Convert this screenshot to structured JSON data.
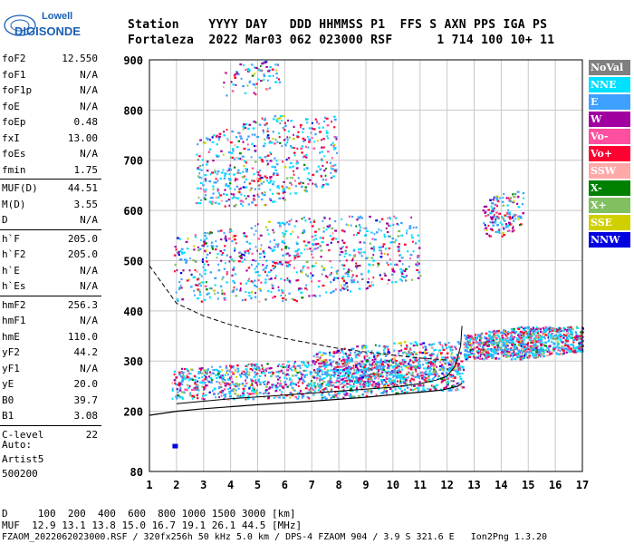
{
  "logo": {
    "line1": "Lowell",
    "line2": "DIGISONDE",
    "color": "#1a5fb4"
  },
  "header": {
    "row1": "Station    YYYY DAY   DDD HHMMSS P1  FFS S AXN PPS IGA PS",
    "row2": "Fortaleza  2022 Mar03 062 023000 RSF      1 714 100 10+ 11"
  },
  "params_groups": [
    [
      {
        "name": "foF2",
        "value": "12.550"
      },
      {
        "name": "foF1",
        "value": "N/A"
      },
      {
        "name": "foF1p",
        "value": "N/A"
      },
      {
        "name": "foE",
        "value": "N/A"
      },
      {
        "name": "foEp",
        "value": "0.48"
      },
      {
        "name": "fxI",
        "value": "13.00"
      },
      {
        "name": "foEs",
        "value": "N/A"
      },
      {
        "name": "fmin",
        "value": "1.75"
      }
    ],
    [
      {
        "name": "MUF(D)",
        "value": "44.51"
      },
      {
        "name": "M(D)",
        "value": "3.55"
      },
      {
        "name": "D",
        "value": "N/A"
      }
    ],
    [
      {
        "name": "h`F",
        "value": "205.0"
      },
      {
        "name": "h`F2",
        "value": "205.0"
      },
      {
        "name": "h`E",
        "value": "N/A"
      },
      {
        "name": "h`Es",
        "value": "N/A"
      }
    ],
    [
      {
        "name": "hmF2",
        "value": "256.3"
      },
      {
        "name": "hmF1",
        "value": "N/A"
      },
      {
        "name": "hmE",
        "value": "110.0"
      },
      {
        "name": "yF2",
        "value": "44.2"
      },
      {
        "name": "yF1",
        "value": "N/A"
      },
      {
        "name": "yE",
        "value": "20.0"
      },
      {
        "name": "B0",
        "value": "39.7"
      },
      {
        "name": "B1",
        "value": "3.08"
      }
    ],
    [
      {
        "name": "C-level",
        "value": "22"
      }
    ]
  ],
  "autoscale": {
    "line1": "Auto:",
    "line2": "Artist5",
    "line3": "500200"
  },
  "legend": [
    {
      "label": "NoVal",
      "color": "#808080"
    },
    {
      "label": "NNE",
      "color": "#00e0ff"
    },
    {
      "label": "E",
      "color": "#3ea0ff"
    },
    {
      "label": "W",
      "color": "#a000a0"
    },
    {
      "label": "Vo-",
      "color": "#ff4fa0"
    },
    {
      "label": "Vo+",
      "color": "#ff0030"
    },
    {
      "label": "SSW",
      "color": "#ffa8a8"
    },
    {
      "label": "X-",
      "color": "#008000"
    },
    {
      "label": "X+",
      "color": "#80c060"
    },
    {
      "label": "SSE",
      "color": "#d0d000"
    },
    {
      "label": "NNW",
      "color": "#0000e0"
    }
  ],
  "footer": {
    "line1": "D     100  200  400  600  800 1000 1500 3000 [km]",
    "line2": "MUF  12.9 13.1 13.8 15.0 16.7 19.1 26.1 44.5 [MHz]",
    "line3": "FZAOM_2022062023000.RSF / 320fx256h 50 kHz 5.0 km / DPS-4 FZAOM 904 / 3.9 S 321.6 E   Ion2Png 1.3.20"
  },
  "chart_data": {
    "type": "scatter",
    "xlim": [
      1,
      17
    ],
    "ylim": [
      80,
      900
    ],
    "x_ticks": [
      "1",
      "2",
      "3",
      "4",
      "5",
      "6",
      "7",
      "8",
      "9",
      "10",
      "11",
      "12",
      "13",
      "14",
      "15",
      "16",
      "17"
    ],
    "y_ticks": [
      "80",
      "200",
      "300",
      "400",
      "500",
      "600",
      "700",
      "800",
      "900"
    ],
    "y_tick_values": [
      80,
      200,
      300,
      400,
      500,
      600,
      700,
      800,
      900
    ],
    "grid": true,
    "trace_clusters": [
      {
        "x0": 1.8,
        "x1": 12.6,
        "y0": 225,
        "y1": 305,
        "density": 1400
      },
      {
        "x0": 7.0,
        "x1": 12.5,
        "y0": 250,
        "y1": 340,
        "density": 700
      },
      {
        "x0": 12.6,
        "x1": 17.0,
        "y0": 305,
        "y1": 370,
        "density": 1100
      },
      {
        "x0": 1.9,
        "x1": 11.0,
        "y0": 420,
        "y1": 590,
        "density": 900
      },
      {
        "x0": 2.7,
        "x1": 7.9,
        "y0": 610,
        "y1": 790,
        "density": 600
      },
      {
        "x0": 3.7,
        "x1": 5.8,
        "y0": 830,
        "y1": 900,
        "density": 80
      },
      {
        "x0": 13.3,
        "x1": 14.8,
        "y0": 550,
        "y1": 640,
        "density": 180
      }
    ],
    "profile_curve": {
      "x": [
        1.0,
        2.0,
        3.0,
        5.0,
        7.0,
        9.0,
        10.0,
        11.0,
        11.8,
        12.4,
        12.55
      ],
      "y": [
        192,
        200,
        205,
        213,
        220,
        228,
        233,
        238,
        242,
        250,
        256
      ]
    },
    "f_profile_curve": {
      "x": [
        2.0,
        4.0,
        6.0,
        8.0,
        10.0,
        11.0,
        11.6,
        12.0,
        12.3,
        12.5,
        12.55
      ],
      "y": [
        215,
        225,
        232,
        240,
        248,
        255,
        262,
        270,
        290,
        330,
        370
      ]
    },
    "muf_curve": {
      "x": [
        1.0,
        2.0,
        3.0,
        4.0,
        5.0,
        6.0,
        7.0,
        8.0,
        9.0,
        10.0,
        11.0,
        12.0
      ],
      "y": [
        490,
        415,
        390,
        372,
        358,
        345,
        335,
        325,
        318,
        312,
        306,
        302
      ]
    }
  }
}
